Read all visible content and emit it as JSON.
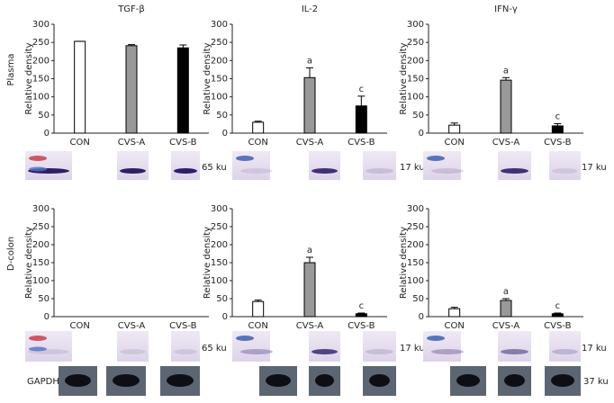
{
  "chart_data": [
    {
      "type": "bar",
      "title": "TGF-β",
      "y_label": "Relative density",
      "categories": [
        "CON",
        "CVS-A",
        "CVS-B"
      ],
      "values": [
        253,
        241,
        235
      ],
      "errors": [
        0,
        3,
        8
      ],
      "colors": [
        "#ffffff",
        "#999999",
        "#000000"
      ],
      "ylim": [
        0,
        300
      ],
      "yticks": [
        0,
        50,
        100,
        150,
        200,
        250,
        300
      ]
    },
    {
      "type": "bar",
      "title": "IL-2",
      "y_label": "Relative density",
      "categories": [
        "CON",
        "CVS-A",
        "CVS-B"
      ],
      "values": [
        30,
        153,
        75
      ],
      "errors": [
        3,
        27,
        27
      ],
      "colors": [
        "#ffffff",
        "#999999",
        "#000000"
      ],
      "annotations": [
        null,
        "a",
        "c"
      ],
      "ylim": [
        0,
        300
      ],
      "yticks": [
        0,
        50,
        100,
        150,
        200,
        250,
        300
      ]
    },
    {
      "type": "bar",
      "title": "IFN-γ",
      "y_label": "Relative density",
      "categories": [
        "CON",
        "CVS-A",
        "CVS-B"
      ],
      "values": [
        22,
        146,
        20
      ],
      "errors": [
        6,
        7,
        6
      ],
      "colors": [
        "#ffffff",
        "#999999",
        "#000000"
      ],
      "annotations": [
        null,
        "a",
        "c"
      ],
      "ylim": [
        0,
        300
      ],
      "yticks": [
        0,
        50,
        100,
        150,
        200,
        250,
        300
      ]
    },
    {
      "type": "bar",
      "y_label": "Relative density",
      "categories": [
        "CON",
        "CVS-A",
        "CVS-B"
      ],
      "values": [
        null,
        null,
        null
      ],
      "ylim": [
        0,
        300
      ],
      "yticks": [
        0,
        50,
        100,
        150,
        200,
        250,
        300
      ]
    },
    {
      "type": "bar",
      "y_label": "Relative density",
      "categories": [
        "CON",
        "CVS-A",
        "CVS-B"
      ],
      "values": [
        42,
        150,
        8
      ],
      "errors": [
        4,
        15,
        2
      ],
      "colors": [
        "#ffffff",
        "#999999",
        "#000000"
      ],
      "annotations": [
        null,
        "a",
        "c"
      ],
      "ylim": [
        0,
        300
      ],
      "yticks": [
        0,
        50,
        100,
        150,
        200,
        250,
        300
      ]
    },
    {
      "type": "bar",
      "y_label": "Relative density",
      "categories": [
        "CON",
        "CVS-A",
        "CVS-B"
      ],
      "values": [
        22,
        45,
        8
      ],
      "errors": [
        4,
        5,
        2
      ],
      "colors": [
        "#ffffff",
        "#999999",
        "#000000"
      ],
      "annotations": [
        null,
        "a",
        "c"
      ],
      "ylim": [
        0,
        300
      ],
      "yticks": [
        0,
        50,
        100,
        150,
        200,
        250,
        300
      ]
    }
  ],
  "row_labels": [
    "Plasma",
    "D-colon"
  ],
  "blot_labels": [
    [
      "65 ku",
      "17 ku",
      "17 ku"
    ],
    [
      "65 ku",
      "17 ku",
      "17 ku"
    ]
  ],
  "gapdh": {
    "label": "GAPDH",
    "size": "37 ku"
  }
}
